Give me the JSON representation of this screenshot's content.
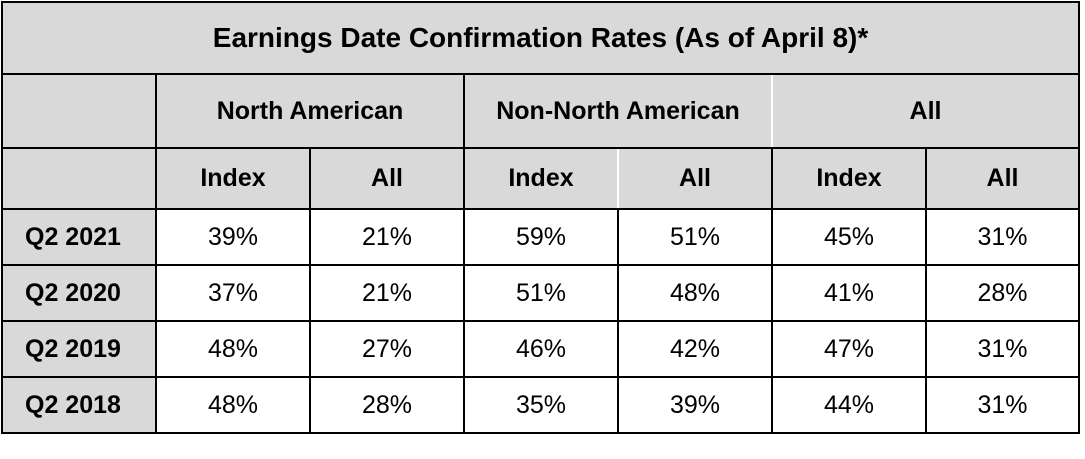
{
  "chart_data": {
    "type": "table",
    "title": "Earnings Date Confirmation Rates (As of April 8)*",
    "groups": [
      "North American",
      "Non-North American",
      "All"
    ],
    "subcolumns": [
      "Index",
      "All",
      "Index",
      "All",
      "Index",
      "All"
    ],
    "rows": [
      {
        "label": "Q2 2021",
        "values": [
          "39%",
          "21%",
          "59%",
          "51%",
          "45%",
          "31%"
        ]
      },
      {
        "label": "Q2 2020",
        "values": [
          "37%",
          "21%",
          "51%",
          "48%",
          "41%",
          "28%"
        ]
      },
      {
        "label": "Q2 2019",
        "values": [
          "48%",
          "27%",
          "46%",
          "42%",
          "47%",
          "31%"
        ]
      },
      {
        "label": "Q2 2018",
        "values": [
          "48%",
          "28%",
          "35%",
          "39%",
          "44%",
          "31%"
        ]
      }
    ]
  }
}
